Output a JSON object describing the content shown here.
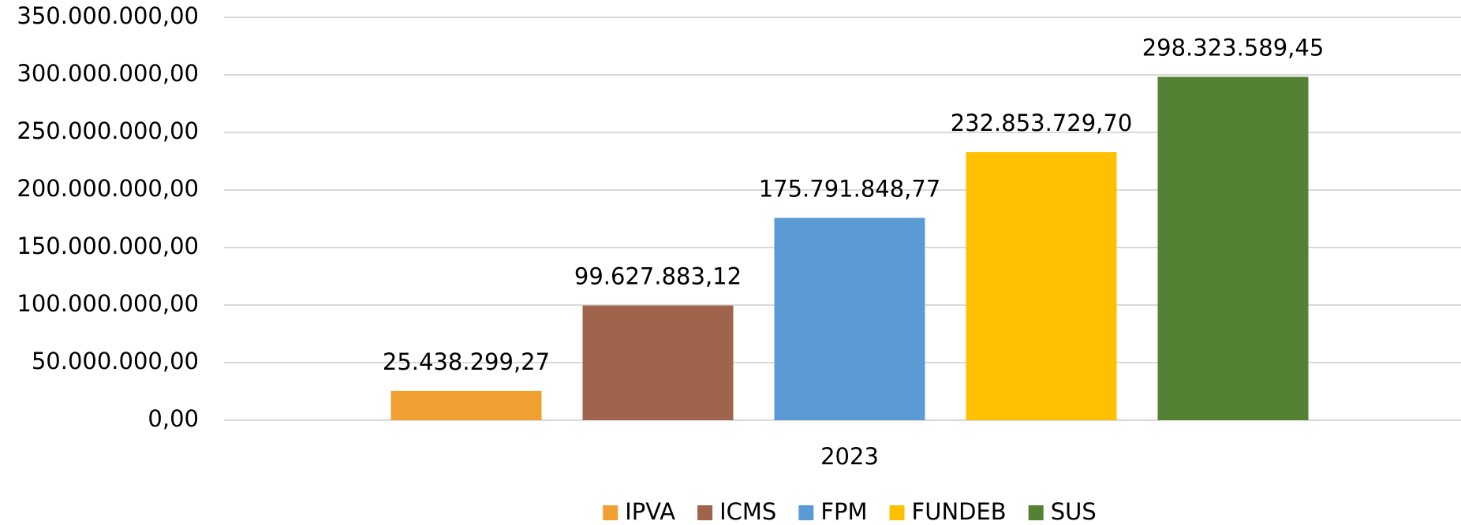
{
  "chart_data": {
    "type": "bar",
    "categories": [
      "2023"
    ],
    "series": [
      {
        "name": "IPVA",
        "color": "#F0A030",
        "values": [
          25438299.27
        ],
        "value_labels": [
          "25.438.299,27"
        ]
      },
      {
        "name": "ICMS",
        "color": "#A0644C",
        "values": [
          99627883.12
        ],
        "value_labels": [
          "99.627.883,12"
        ]
      },
      {
        "name": "FPM",
        "color": "#5B9BD5",
        "values": [
          175791848.77
        ],
        "value_labels": [
          "175.791.848,77"
        ]
      },
      {
        "name": "FUNDEB",
        "color": "#FFC000",
        "values": [
          232853729.7
        ],
        "value_labels": [
          "232.853.729,70"
        ]
      },
      {
        "name": "SUS",
        "color": "#548235",
        "values": [
          298323589.45
        ],
        "value_labels": [
          "298.323.589,45"
        ]
      }
    ],
    "ylim": [
      0,
      350000000
    ],
    "yticks": [
      {
        "value": 0,
        "label": "0,00"
      },
      {
        "value": 50000000,
        "label": "50.000.000,00"
      },
      {
        "value": 100000000,
        "label": "100.000.000,00"
      },
      {
        "value": 150000000,
        "label": "150.000.000,00"
      },
      {
        "value": 200000000,
        "label": "200.000.000,00"
      },
      {
        "value": 250000000,
        "label": "250.000.000,00"
      },
      {
        "value": 300000000,
        "label": "300.000.000,00"
      },
      {
        "value": 350000000,
        "label": "350.000.000,00"
      }
    ],
    "grid": true,
    "legend": "bottom"
  }
}
